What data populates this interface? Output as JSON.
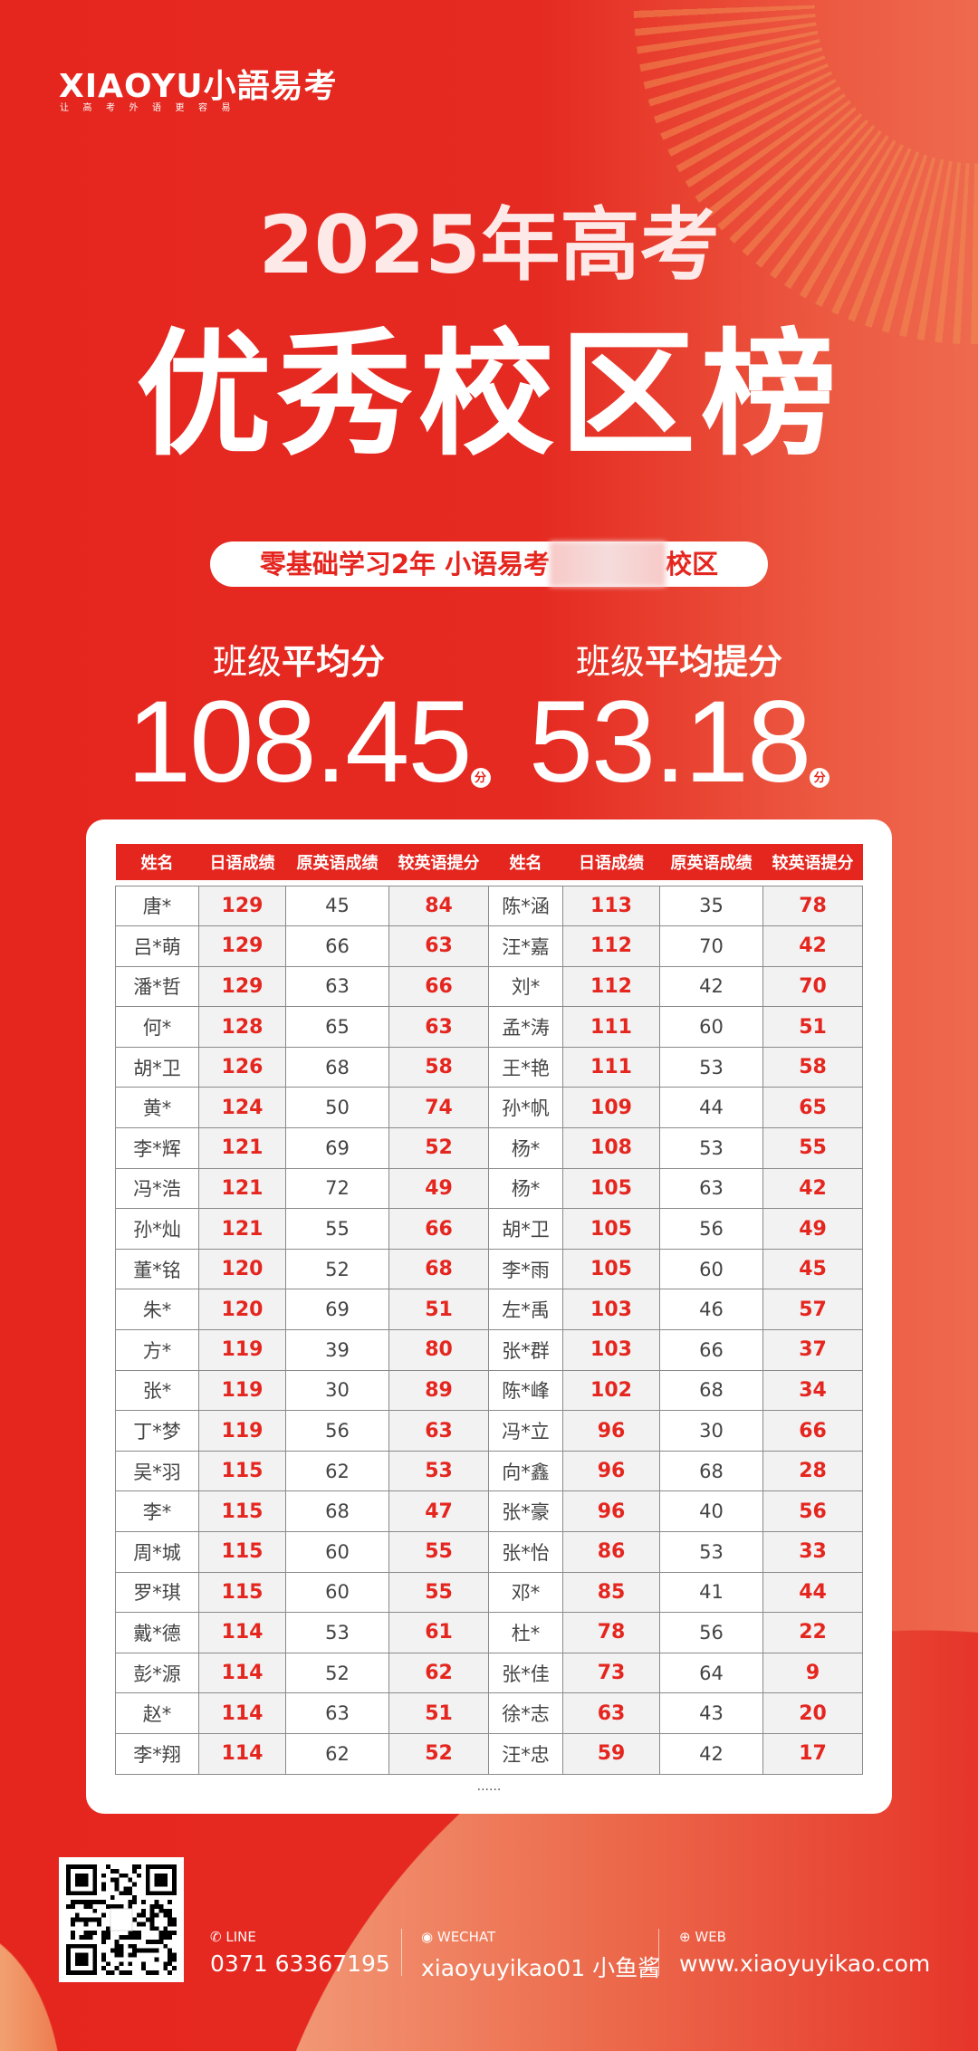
{
  "brand": {
    "logo": "XIAOYU小語易考",
    "tagline": "让高考外语更容易"
  },
  "title": {
    "line1": "2025年高考",
    "line2": "优秀校区榜"
  },
  "campus": {
    "prefix": "零基础学习2年 小语易考",
    "suffix": "校区"
  },
  "stats": [
    {
      "label_light": "班级",
      "label_bold": "平均分",
      "value": "108.45",
      "unit": "分"
    },
    {
      "label_light": "班级",
      "label_bold": "平均提分",
      "value": "53.18",
      "unit": "分"
    }
  ],
  "table": {
    "headers": [
      "姓名",
      "日语成绩",
      "原英语成绩",
      "较英语提分",
      "姓名",
      "日语成绩",
      "原英语成绩",
      "较英语提分"
    ],
    "rows": [
      [
        "唐*",
        "129",
        "45",
        "84",
        "陈*涵",
        "113",
        "35",
        "78"
      ],
      [
        "吕*萌",
        "129",
        "66",
        "63",
        "汪*嘉",
        "112",
        "70",
        "42"
      ],
      [
        "潘*哲",
        "129",
        "63",
        "66",
        "刘*",
        "112",
        "42",
        "70"
      ],
      [
        "何*",
        "128",
        "65",
        "63",
        "孟*涛",
        "111",
        "60",
        "51"
      ],
      [
        "胡*卫",
        "126",
        "68",
        "58",
        "王*艳",
        "111",
        "53",
        "58"
      ],
      [
        "黄*",
        "124",
        "50",
        "74",
        "孙*帆",
        "109",
        "44",
        "65"
      ],
      [
        "李*辉",
        "121",
        "69",
        "52",
        "杨*",
        "108",
        "53",
        "55"
      ],
      [
        "冯*浩",
        "121",
        "72",
        "49",
        "杨*",
        "105",
        "63",
        "42"
      ],
      [
        "孙*灿",
        "121",
        "55",
        "66",
        "胡*卫",
        "105",
        "56",
        "49"
      ],
      [
        "董*铭",
        "120",
        "52",
        "68",
        "李*雨",
        "105",
        "60",
        "45"
      ],
      [
        "朱*",
        "120",
        "69",
        "51",
        "左*禹",
        "103",
        "46",
        "57"
      ],
      [
        "方*",
        "119",
        "39",
        "80",
        "张*群",
        "103",
        "66",
        "37"
      ],
      [
        "张*",
        "119",
        "30",
        "89",
        "陈*峰",
        "102",
        "68",
        "34"
      ],
      [
        "丁*梦",
        "119",
        "56",
        "63",
        "冯*立",
        "96",
        "30",
        "66"
      ],
      [
        "吴*羽",
        "115",
        "62",
        "53",
        "向*鑫",
        "96",
        "68",
        "28"
      ],
      [
        "李*",
        "115",
        "68",
        "47",
        "张*豪",
        "96",
        "40",
        "56"
      ],
      [
        "周*城",
        "115",
        "60",
        "55",
        "张*怡",
        "86",
        "53",
        "33"
      ],
      [
        "罗*琪",
        "115",
        "60",
        "55",
        "邓*",
        "85",
        "41",
        "44"
      ],
      [
        "戴*德",
        "114",
        "53",
        "61",
        "杜*",
        "78",
        "56",
        "22"
      ],
      [
        "彭*源",
        "114",
        "52",
        "62",
        "张*佳",
        "73",
        "64",
        "9"
      ],
      [
        "赵*",
        "114",
        "63",
        "51",
        "徐*志",
        "63",
        "43",
        "20"
      ],
      [
        "李*翔",
        "114",
        "62",
        "52",
        "汪*忠",
        "59",
        "42",
        "17"
      ]
    ],
    "more": "......"
  },
  "contact": [
    {
      "icon": "phone-icon",
      "label": "LINE",
      "value": "0371 63367195"
    },
    {
      "icon": "wechat-icon",
      "label": "WECHAT",
      "value": "xiaoyuyikao01 小鱼酱"
    },
    {
      "icon": "globe-icon",
      "label": "WEB",
      "value": "www.xiaoyuyikao.com"
    }
  ],
  "colors": {
    "primary": "#e5261f",
    "accent": "#ee6a4f",
    "cell_gray": "#f2f2f2"
  }
}
